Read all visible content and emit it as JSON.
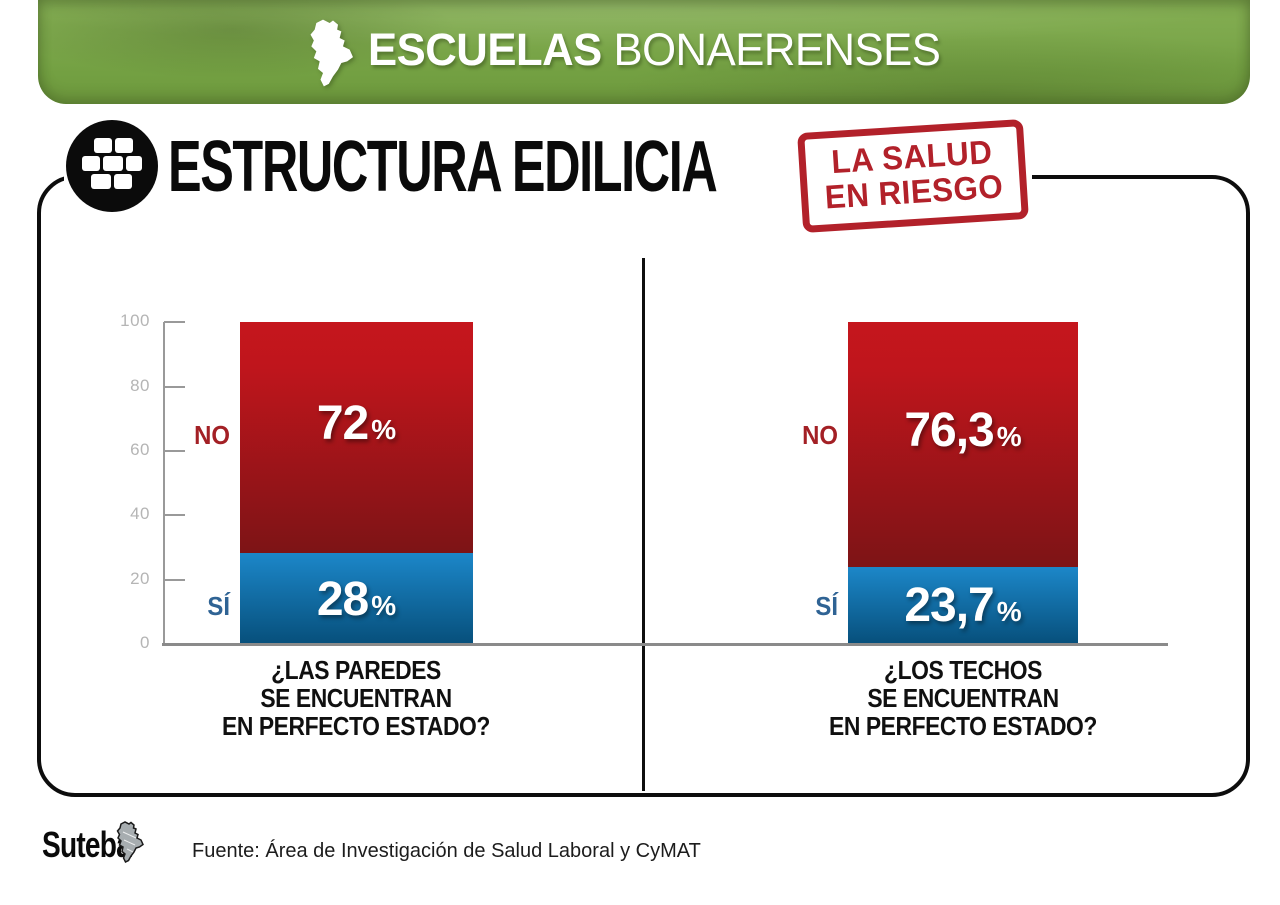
{
  "banner": {
    "title_bold": "ESCUELAS",
    "title_light": "BONAERENSES"
  },
  "header": {
    "title": "ESTRUCTURA EDILICIA",
    "stamp": {
      "line1": "LA SALUD",
      "line2": "EN RIESGO"
    }
  },
  "chart_data": [
    {
      "type": "bar",
      "stacked": true,
      "title": "¿LAS PAREDES SE ENCUENTRAN EN PERFECTO ESTADO?",
      "title_lines": [
        "¿LAS PAREDES",
        "SE ENCUENTRAN",
        "EN PERFECTO ESTADO?"
      ],
      "categories": [
        "NO",
        "SÍ"
      ],
      "values": [
        72,
        28
      ],
      "display_values": [
        "72",
        "28"
      ],
      "percent_sign": "%",
      "ylim": [
        0,
        100
      ],
      "ytick_labels": [
        "100",
        "80",
        "60",
        "40",
        "20",
        "0"
      ],
      "y_axis_visible": true,
      "legend_position": "left-of-bar"
    },
    {
      "type": "bar",
      "stacked": true,
      "title": "¿LOS TECHOS SE ENCUENTRAN EN PERFECTO ESTADO?",
      "title_lines": [
        "¿LOS TECHOS",
        "SE ENCUENTRAN",
        "EN PERFECTO ESTADO?"
      ],
      "categories": [
        "NO",
        "SÍ"
      ],
      "values": [
        76.3,
        23.7
      ],
      "display_values": [
        "76,3",
        "23,7"
      ],
      "percent_sign": "%",
      "ylim": [
        0,
        100
      ],
      "y_axis_visible": false,
      "legend_position": "left-of-bar"
    }
  ],
  "footer": {
    "logo_text": "Suteba",
    "source": "Fuente: Área de Investigación de Salud Laboral y CyMAT"
  },
  "colors": {
    "banner_green_light": "#84ae52",
    "banner_green_dark": "#6f9a3e",
    "bar_red_top": "#c5161d",
    "bar_red_bottom": "#7d1416",
    "bar_blue_top": "#1c87c9",
    "bar_blue_bottom": "#07507c",
    "no_label": "#a32025",
    "si_label": "#2f6394",
    "stamp_red": "#b2212a",
    "axis_gray": "#999999",
    "tick_label_gray": "#b5b5b5",
    "baseline_gray": "#8a8a8a"
  }
}
